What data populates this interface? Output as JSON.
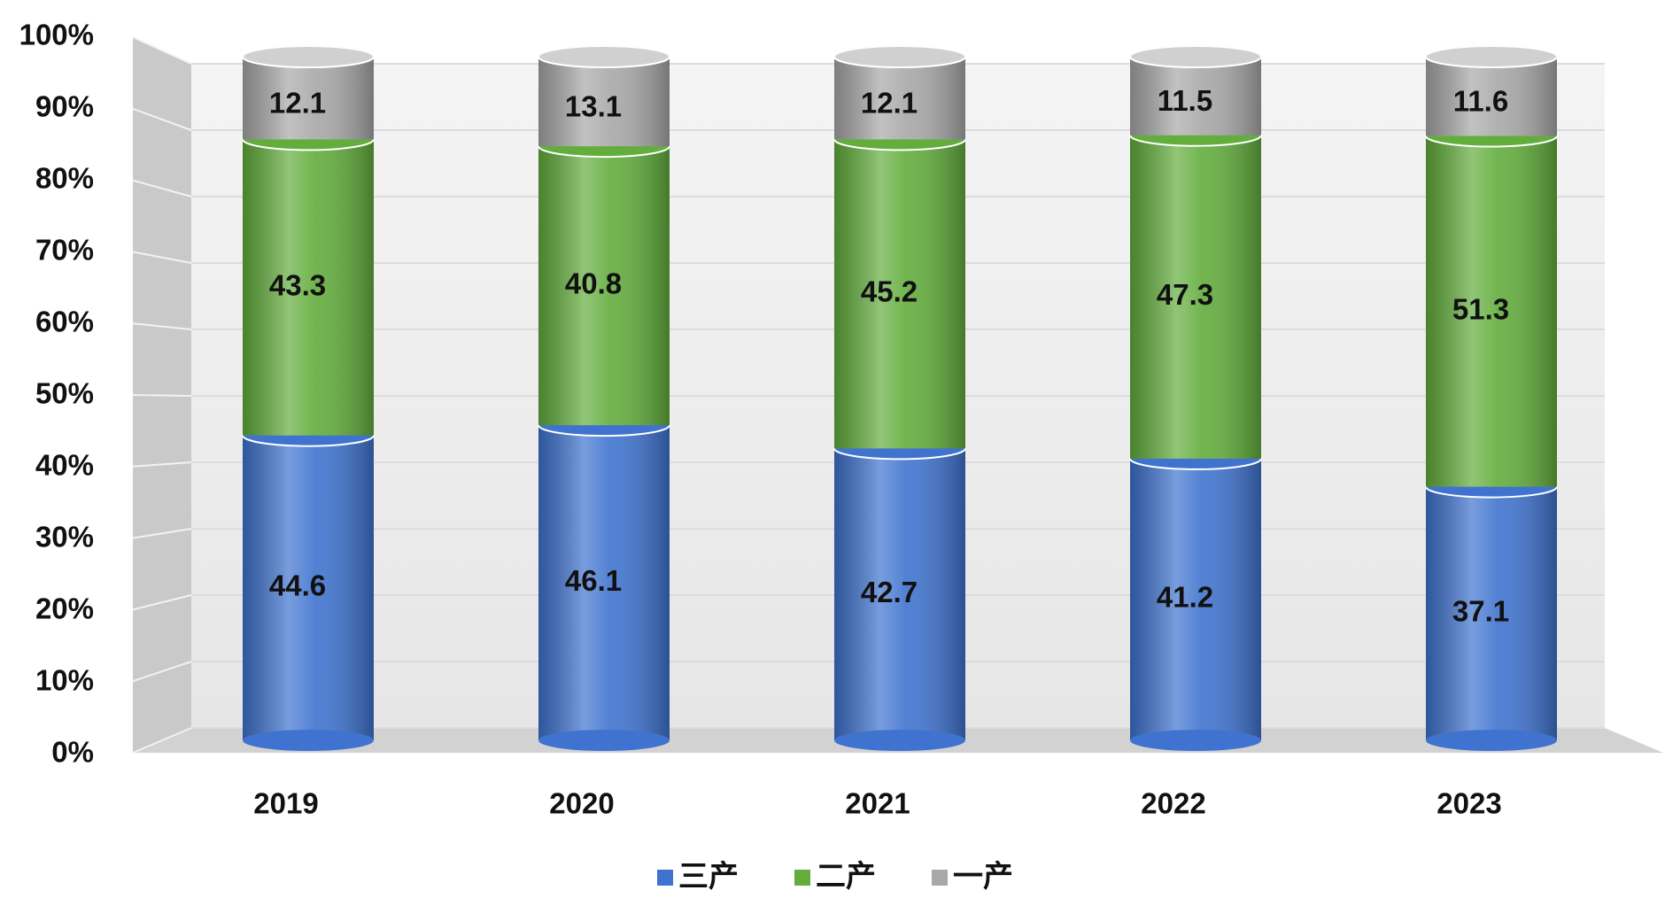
{
  "chart_data": {
    "type": "stacked-bar",
    "categories": [
      "2019",
      "2020",
      "2021",
      "2022",
      "2023"
    ],
    "series": [
      {
        "name": "三产",
        "color": "#3f73cf",
        "values": [
          44.6,
          46.1,
          42.7,
          41.2,
          37.1
        ]
      },
      {
        "name": "二产",
        "color": "#62ad3c",
        "values": [
          43.3,
          40.8,
          45.2,
          47.3,
          51.3
        ]
      },
      {
        "name": "一产",
        "color": "#a8a8a8",
        "values": [
          12.1,
          13.1,
          12.1,
          11.5,
          11.6
        ]
      }
    ],
    "ylim": [
      0,
      100
    ],
    "yticks": [
      {
        "value": 0,
        "label": "0%"
      },
      {
        "value": 10,
        "label": "10%"
      },
      {
        "value": 20,
        "label": "20%"
      },
      {
        "value": 30,
        "label": "30%"
      },
      {
        "value": 40,
        "label": "40%"
      },
      {
        "value": 50,
        "label": "50%"
      },
      {
        "value": 60,
        "label": "60%"
      },
      {
        "value": 70,
        "label": "70%"
      },
      {
        "value": 80,
        "label": "80%"
      },
      {
        "value": 90,
        "label": "90%"
      },
      {
        "value": 100,
        "label": "100%"
      }
    ],
    "grid": true
  }
}
